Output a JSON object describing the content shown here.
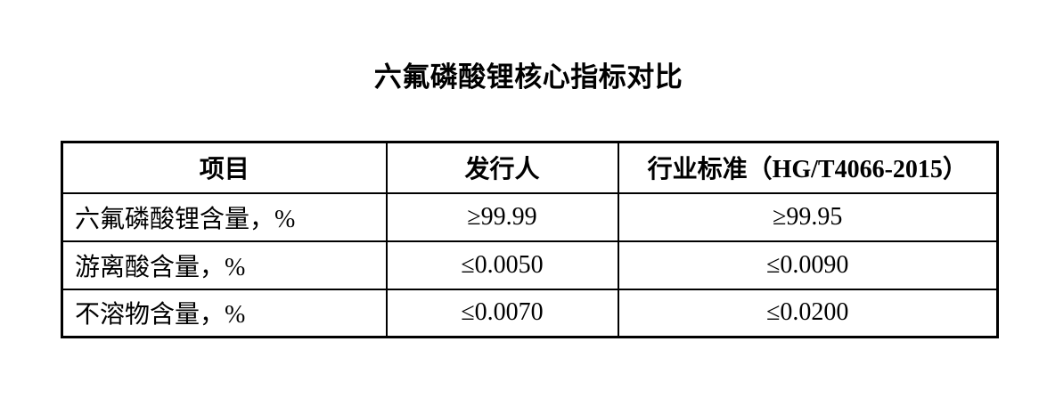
{
  "page": {
    "title": "六氟磷酸锂核心指标对比"
  },
  "table": {
    "headers": [
      "项目",
      "发行人",
      "行业标准（HG/T4066-2015）"
    ],
    "rows": [
      [
        "六氟磷酸锂含量，%",
        "≥99.99",
        "≥99.95"
      ],
      [
        "游离酸含量，%",
        "≤0.0050",
        "≤0.0090"
      ],
      [
        "不溶物含量，%",
        "≤0.0070",
        "≤0.0200"
      ]
    ],
    "colors": {
      "border": "#000000",
      "text": "#000000",
      "background": "#ffffff"
    }
  }
}
